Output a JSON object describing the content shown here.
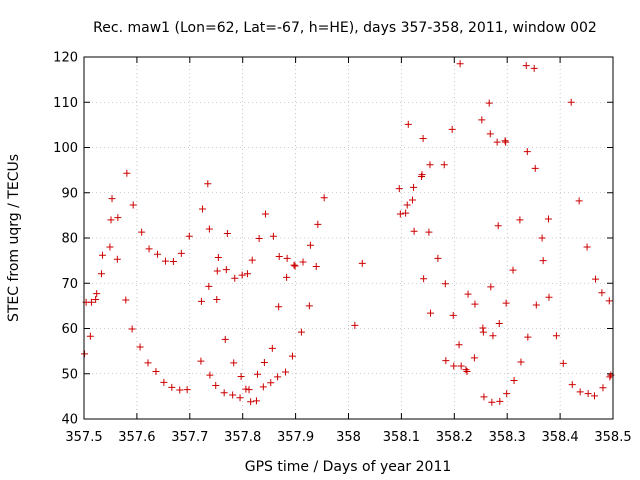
{
  "chart_data": {
    "type": "scatter",
    "title": "Rec. maw1 (Lon=62, Lat=-67, h=HE), days 357-358, 2011, window 002",
    "xlabel": "GPS time / Days of year 2011",
    "ylabel": "STEC from uqrg / TECUs",
    "xlim": [
      357.5,
      358.5
    ],
    "ylim": [
      40,
      120
    ],
    "x_ticks": [
      357.5,
      357.6,
      357.7,
      357.8,
      357.9,
      358.0,
      358.1,
      358.2,
      358.3,
      358.4,
      358.5
    ],
    "x_tick_labels": [
      "357.5",
      "357.6",
      "357.7",
      "357.8",
      "357.9",
      "358",
      "358.1",
      "358.2",
      "358.3",
      "358.4",
      "358.5"
    ],
    "y_ticks": [
      40,
      50,
      60,
      70,
      80,
      90,
      100,
      110,
      120
    ],
    "y_tick_labels": [
      "40",
      "50",
      "60",
      "70",
      "80",
      "90",
      "100",
      "110",
      "120"
    ],
    "grid": true,
    "marker": "+",
    "color": "#cc0000",
    "points": [
      [
        357.501,
        54.4
      ],
      [
        357.504,
        65.8
      ],
      [
        357.512,
        58.3
      ],
      [
        357.514,
        65.8
      ],
      [
        357.522,
        66.4
      ],
      [
        357.524,
        67.7
      ],
      [
        357.533,
        72.1
      ],
      [
        357.535,
        76.2
      ],
      [
        357.549,
        78.0
      ],
      [
        357.551,
        84.0
      ],
      [
        357.553,
        88.7
      ],
      [
        357.564,
        84.5
      ],
      [
        357.563,
        75.3
      ],
      [
        357.579,
        66.3
      ],
      [
        357.581,
        94.3
      ],
      [
        357.591,
        59.9
      ],
      [
        357.593,
        87.3
      ],
      [
        357.606,
        55.9
      ],
      [
        357.609,
        81.3
      ],
      [
        357.621,
        52.4
      ],
      [
        357.623,
        77.6
      ],
      [
        357.636,
        50.5
      ],
      [
        357.639,
        76.4
      ],
      [
        357.651,
        48.1
      ],
      [
        357.654,
        74.9
      ],
      [
        357.666,
        47.0
      ],
      [
        357.669,
        74.8
      ],
      [
        357.681,
        46.4
      ],
      [
        357.684,
        76.6
      ],
      [
        357.695,
        46.5
      ],
      [
        357.699,
        80.4
      ],
      [
        357.721,
        52.8
      ],
      [
        357.722,
        66.0
      ],
      [
        357.724,
        86.4
      ],
      [
        357.736,
        69.3
      ],
      [
        357.734,
        92.0
      ],
      [
        357.737,
        82.0
      ],
      [
        357.738,
        49.7
      ],
      [
        357.749,
        47.4
      ],
      [
        357.751,
        66.4
      ],
      [
        357.752,
        72.7
      ],
      [
        357.754,
        75.7
      ],
      [
        357.765,
        45.8
      ],
      [
        357.767,
        57.6
      ],
      [
        357.769,
        73.0
      ],
      [
        357.771,
        81.0
      ],
      [
        357.781,
        45.3
      ],
      [
        357.783,
        52.4
      ],
      [
        357.785,
        71.1
      ],
      [
        357.795,
        44.7
      ],
      [
        357.797,
        49.4
      ],
      [
        357.799,
        71.8
      ],
      [
        357.806,
        46.6
      ],
      [
        357.809,
        72.1
      ],
      [
        357.812,
        46.5
      ],
      [
        357.815,
        43.8
      ],
      [
        357.818,
        75.1
      ],
      [
        357.826,
        44.0
      ],
      [
        357.828,
        49.9
      ],
      [
        357.831,
        79.9
      ],
      [
        357.839,
        47.1
      ],
      [
        357.841,
        52.5
      ],
      [
        357.843,
        85.3
      ],
      [
        357.853,
        48.0
      ],
      [
        357.856,
        55.6
      ],
      [
        357.858,
        80.4
      ],
      [
        357.866,
        49.3
      ],
      [
        357.868,
        64.8
      ],
      [
        357.869,
        75.9
      ],
      [
        357.881,
        50.4
      ],
      [
        357.883,
        71.3
      ],
      [
        357.884,
        75.5
      ],
      [
        357.894,
        53.9
      ],
      [
        357.897,
        74.0
      ],
      [
        357.899,
        73.8
      ],
      [
        357.911,
        59.2
      ],
      [
        357.914,
        74.7
      ],
      [
        357.926,
        65.0
      ],
      [
        357.928,
        78.4
      ],
      [
        357.939,
        73.7
      ],
      [
        357.942,
        83.0
      ],
      [
        357.954,
        88.9
      ],
      [
        358.012,
        60.7
      ],
      [
        358.026,
        74.4
      ],
      [
        358.096,
        90.9
      ],
      [
        358.098,
        85.3
      ],
      [
        358.108,
        85.5
      ],
      [
        358.111,
        87.3
      ],
      [
        358.113,
        105.1
      ],
      [
        358.121,
        88.4
      ],
      [
        358.123,
        91.2
      ],
      [
        358.124,
        81.5
      ],
      [
        358.138,
        93.6
      ],
      [
        358.139,
        94.0
      ],
      [
        358.141,
        102.0
      ],
      [
        358.142,
        71.0
      ],
      [
        358.152,
        81.3
      ],
      [
        358.154,
        96.2
      ],
      [
        358.155,
        63.4
      ],
      [
        358.169,
        75.5
      ],
      [
        358.181,
        96.2
      ],
      [
        358.183,
        69.9
      ],
      [
        358.184,
        52.9
      ],
      [
        358.196,
        104.0
      ],
      [
        358.198,
        62.9
      ],
      [
        358.199,
        51.7
      ],
      [
        358.209,
        56.4
      ],
      [
        358.211,
        118.5
      ],
      [
        358.213,
        51.7
      ],
      [
        358.222,
        50.9
      ],
      [
        358.224,
        50.5
      ],
      [
        358.226,
        67.6
      ],
      [
        358.238,
        53.5
      ],
      [
        358.239,
        65.4
      ],
      [
        358.252,
        106.1
      ],
      [
        358.254,
        60.1
      ],
      [
        358.255,
        59.2
      ],
      [
        358.256,
        44.9
      ],
      [
        358.266,
        109.8
      ],
      [
        358.268,
        103.0
      ],
      [
        358.269,
        69.2
      ],
      [
        358.271,
        43.7
      ],
      [
        358.273,
        58.4
      ],
      [
        358.281,
        101.2
      ],
      [
        358.283,
        82.7
      ],
      [
        358.285,
        61.1
      ],
      [
        358.286,
        43.9
      ],
      [
        358.296,
        101.5
      ],
      [
        358.297,
        101.2
      ],
      [
        358.298,
        65.6
      ],
      [
        358.299,
        45.6
      ],
      [
        358.311,
        72.9
      ],
      [
        358.313,
        48.5
      ],
      [
        358.324,
        84.0
      ],
      [
        358.326,
        52.6
      ],
      [
        358.336,
        118.1
      ],
      [
        358.338,
        99.1
      ],
      [
        358.339,
        58.1
      ],
      [
        358.351,
        117.5
      ],
      [
        358.353,
        95.4
      ],
      [
        358.355,
        65.2
      ],
      [
        358.366,
        80.0
      ],
      [
        358.368,
        75.0
      ],
      [
        358.378,
        84.2
      ],
      [
        358.379,
        66.9
      ],
      [
        358.393,
        58.4
      ],
      [
        358.406,
        52.3
      ],
      [
        358.421,
        110.0
      ],
      [
        358.423,
        47.6
      ],
      [
        358.436,
        88.2
      ],
      [
        358.438,
        46.0
      ],
      [
        358.451,
        78.0
      ],
      [
        358.453,
        45.6
      ],
      [
        358.465,
        45.1
      ],
      [
        358.467,
        70.9
      ],
      [
        358.479,
        67.9
      ],
      [
        358.481,
        46.9
      ],
      [
        358.493,
        66.1
      ],
      [
        358.494,
        49.3
      ],
      [
        358.496,
        49.7
      ]
    ]
  }
}
